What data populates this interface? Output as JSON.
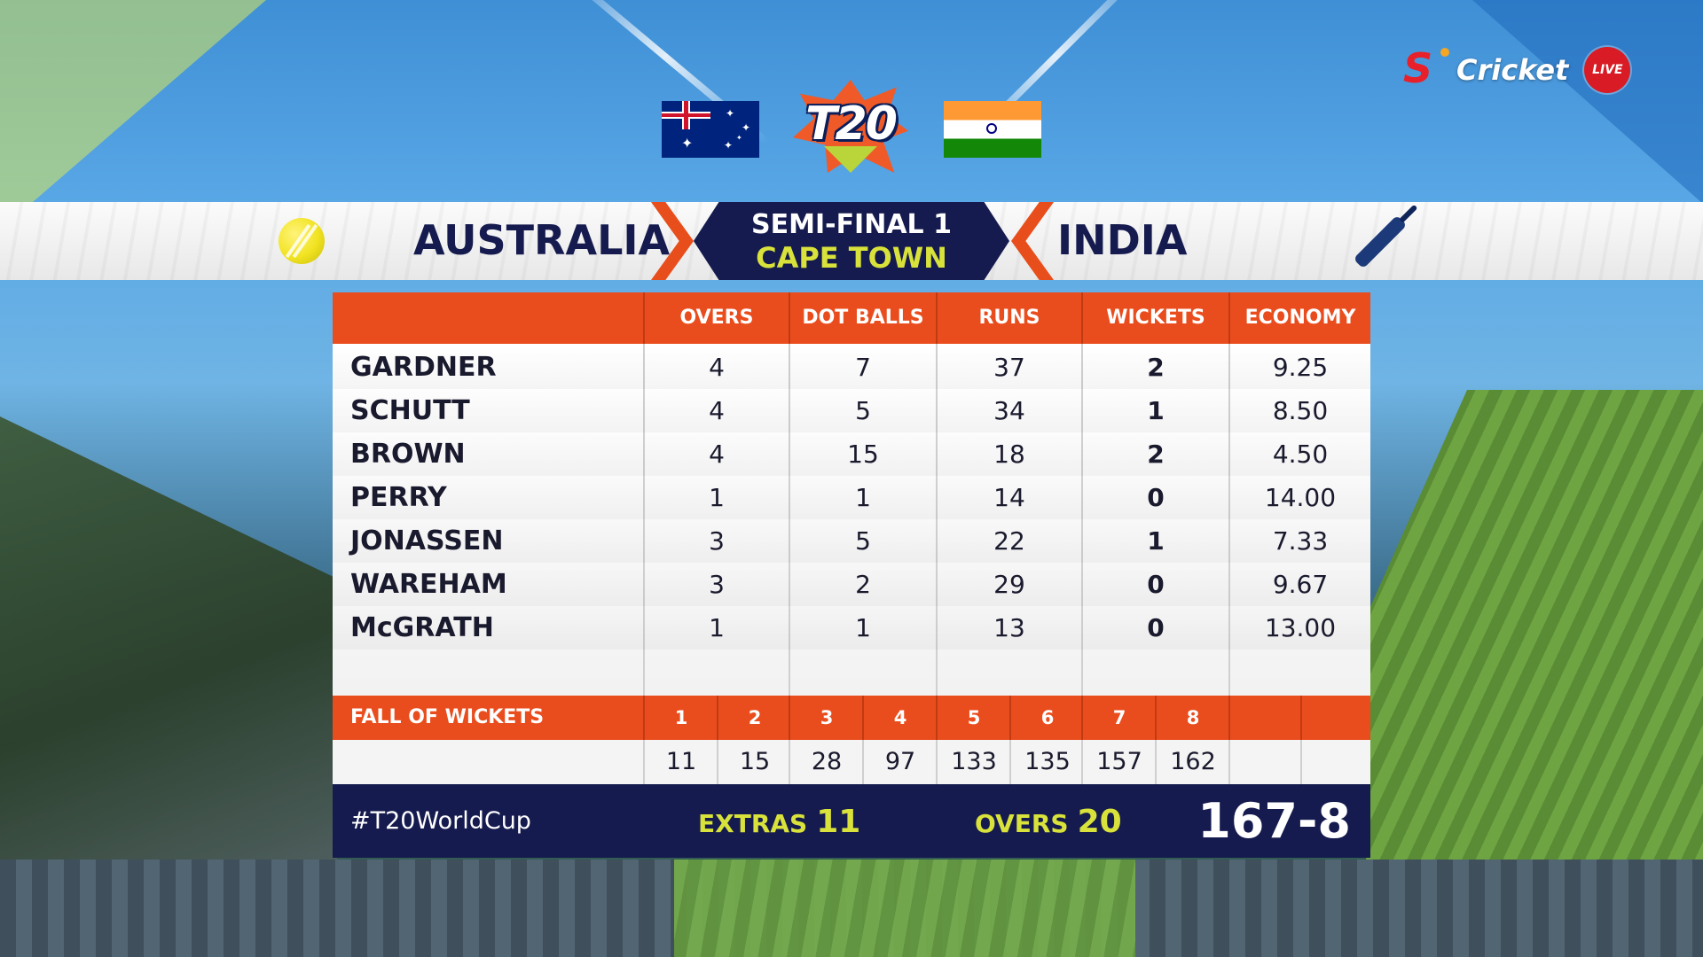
{
  "broadcaster": {
    "name": "Cricket",
    "live_label": "LIVE",
    "logo_icon": "supersport-s-icon"
  },
  "event_logo": {
    "text": "T20"
  },
  "match": {
    "stage": "SEMI-FINAL 1",
    "venue": "CAPE TOWN",
    "bowling_team": "AUSTRALIA",
    "batting_team": "INDIA"
  },
  "colors": {
    "accent_orange": "#ea4d1d",
    "navy": "#151b4e",
    "yellow_green": "#d8e23a"
  },
  "bowling": {
    "headers": [
      "OVERS",
      "DOT BALLS",
      "RUNS",
      "WICKETS",
      "ECONOMY"
    ],
    "rows": [
      {
        "name": "GARDNER",
        "overs": "4",
        "dots": "7",
        "runs": "37",
        "wickets": "2",
        "economy": "9.25"
      },
      {
        "name": "SCHUTT",
        "overs": "4",
        "dots": "5",
        "runs": "34",
        "wickets": "1",
        "economy": "8.50"
      },
      {
        "name": "BROWN",
        "overs": "4",
        "dots": "15",
        "runs": "18",
        "wickets": "2",
        "economy": "4.50"
      },
      {
        "name": "PERRY",
        "overs": "1",
        "dots": "1",
        "runs": "14",
        "wickets": "0",
        "economy": "14.00"
      },
      {
        "name": "JONASSEN",
        "overs": "3",
        "dots": "5",
        "runs": "22",
        "wickets": "1",
        "economy": "7.33"
      },
      {
        "name": "WAREHAM",
        "overs": "3",
        "dots": "2",
        "runs": "29",
        "wickets": "0",
        "economy": "9.67"
      },
      {
        "name": "McGRATH",
        "overs": "1",
        "dots": "1",
        "runs": "13",
        "wickets": "0",
        "economy": "13.00"
      }
    ]
  },
  "fall_of_wickets": {
    "label": "FALL OF WICKETS",
    "numbers": [
      "1",
      "2",
      "3",
      "4",
      "5",
      "6",
      "7",
      "8"
    ],
    "scores": [
      "11",
      "15",
      "28",
      "97",
      "133",
      "135",
      "157",
      "162"
    ]
  },
  "footer": {
    "hashtag": "#T20WorldCup",
    "extras_label": "EXTRAS",
    "extras_value": "11",
    "overs_label": "OVERS",
    "overs_value": "20",
    "total": "167-8"
  }
}
